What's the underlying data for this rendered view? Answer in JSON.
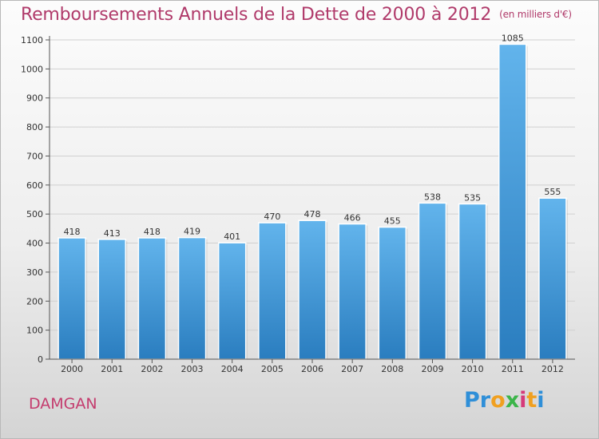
{
  "header": {
    "title": "Remboursements Annuels de la Dette de 2000 à 2012",
    "unit": "(en milliers d'€)"
  },
  "footer": {
    "city": "DAMGAN",
    "logo_letters": [
      "P",
      "r",
      "o",
      "x",
      "i",
      "t",
      "i"
    ],
    "logo_colors": [
      "#2f8fd8",
      "#2f8fd8",
      "#f0a020",
      "#3cb54a",
      "#d63a7a",
      "#f0a020",
      "#2f8fd8"
    ]
  },
  "colors": {
    "bar_top": "#62b4ec",
    "bar_bottom": "#2a7dbf",
    "grid": "#d0d0d0",
    "axis": "#555555"
  },
  "chart_data": {
    "type": "bar",
    "title": "Remboursements Annuels de la Dette de 2000 à 2012",
    "subtitle": "(en milliers d'€)",
    "categories": [
      "2000",
      "2001",
      "2002",
      "2003",
      "2004",
      "2005",
      "2006",
      "2007",
      "2008",
      "2009",
      "2010",
      "2011",
      "2012"
    ],
    "values": [
      418,
      413,
      418,
      419,
      401,
      470,
      478,
      466,
      455,
      538,
      535,
      1085,
      555
    ],
    "ylim": [
      0,
      1100
    ],
    "yticks": [
      0,
      100,
      200,
      300,
      400,
      500,
      600,
      700,
      800,
      900,
      1000,
      1100
    ],
    "grid": true,
    "xlabel": "",
    "ylabel": ""
  }
}
